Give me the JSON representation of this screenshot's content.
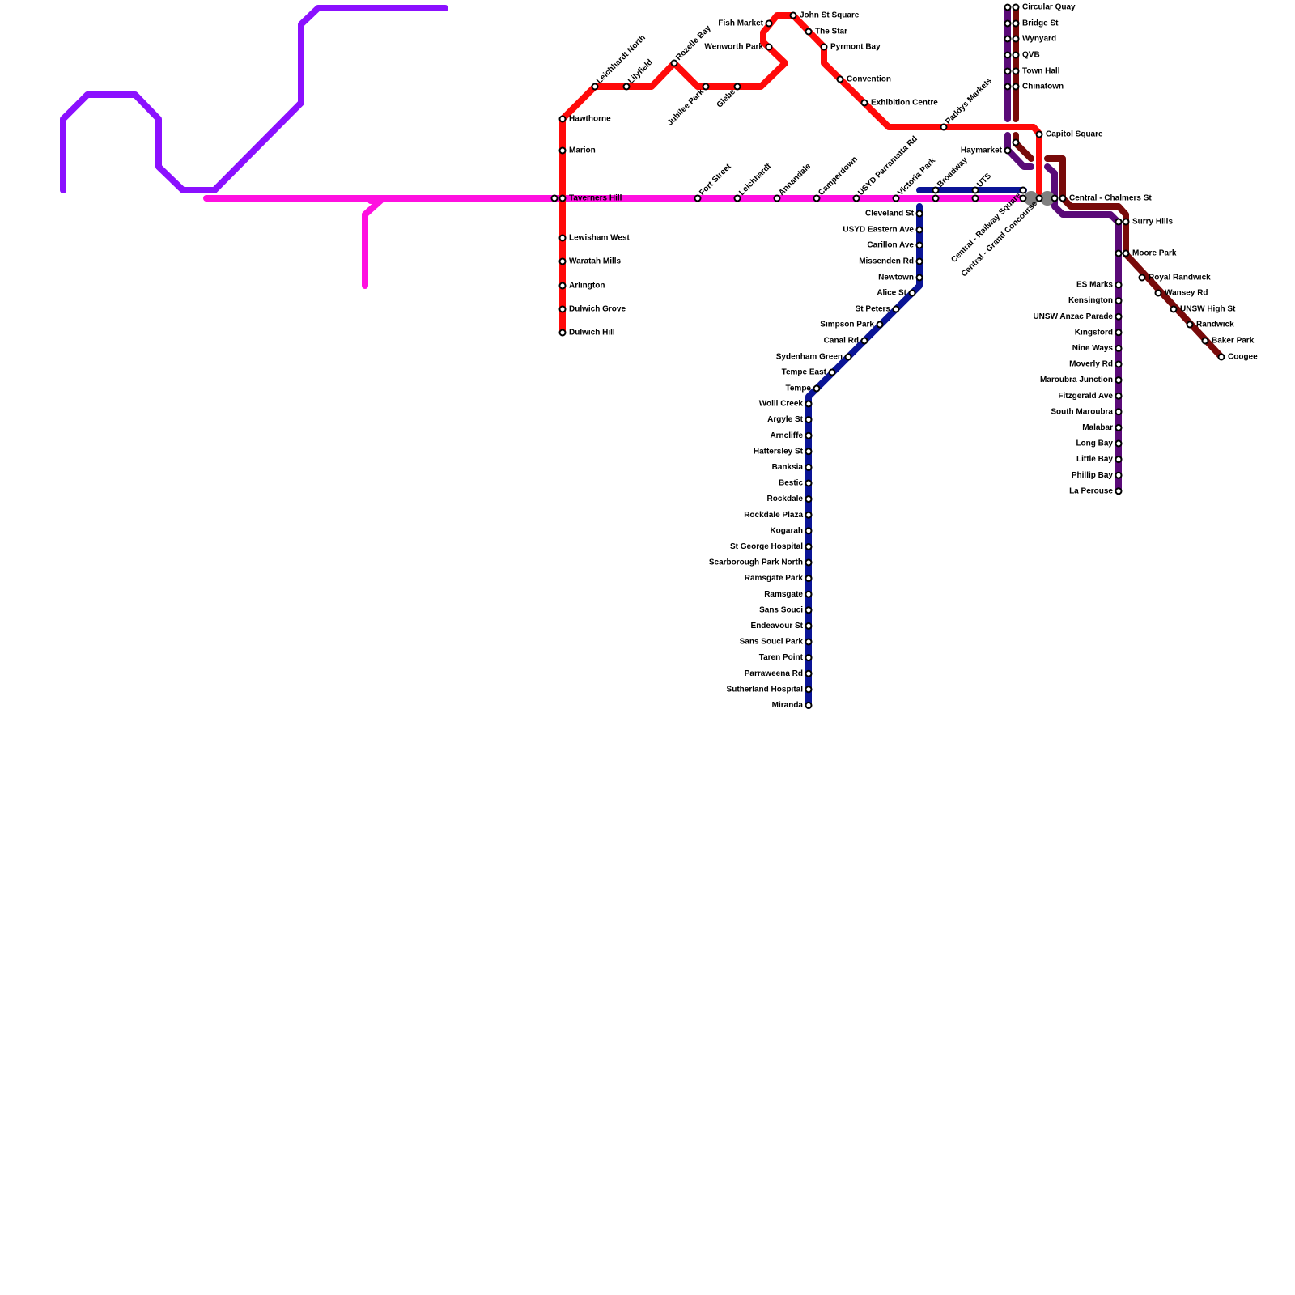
{
  "stations": [
    "Hawthorne",
    "Marion",
    "Taverners Hill",
    "Lewisham West",
    "Waratah Mills",
    "Arlington",
    "Dulwich Grove",
    "Dulwich Hill",
    "Leichhardt North",
    "Lilyfield",
    "Rozelle Bay",
    "Fort Street",
    "Leichhardt",
    "Annandale",
    "Camperdown",
    "USYD Parramatta Rd",
    "Victoria Park",
    "Broadway",
    "UTS",
    "Paddys Markets",
    "Jubilee Park",
    "Glebe",
    "Central - Railway Square",
    "Central - Grand Concourse",
    "Fish Market",
    "Wenworth Park",
    "Haymarket",
    "John St Square",
    "The Star",
    "Pyrmont Bay",
    "Convention",
    "Exhibition Centre",
    "Circular Quay",
    "Bridge St",
    "Wynyard",
    "QVB",
    "Town Hall",
    "Chinatown",
    "Capitol Square",
    "Central - Chalmers St",
    "Surry Hills",
    "Moore Park",
    "Royal Randwick",
    "Wansey Rd",
    "UNSW High St",
    "Randwick",
    "Baker Park",
    "Coogee",
    "Cleveland St",
    "USYD Eastern Ave",
    "Carillon Ave",
    "Missenden Rd",
    "Newtown",
    "Alice St",
    "St Peters",
    "Simpson Park",
    "Canal Rd",
    "Sydenham Green",
    "Tempe East",
    "Tempe",
    "Wolli Creek",
    "Argyle St",
    "Arncliffe",
    "Hattersley St",
    "Banksia",
    "Bestic",
    "Rockdale",
    "Rockdale Plaza",
    "Kogarah",
    "St George Hospital",
    "Scarborough Park North",
    "Ramsgate Park",
    "Ramsgate",
    "Sans Souci",
    "Endeavour St",
    "Sans Souci Park",
    "Taren Point",
    "Parraweena Rd",
    "Sutherland Hospital",
    "Miranda",
    "ES Marks",
    "Kensington",
    "UNSW Anzac Parade",
    "Kingsford",
    "Nine Ways",
    "Moverly Rd",
    "Maroubra Junction",
    "Fitzgerald Ave",
    "South Maroubra",
    "Malabar",
    "Long Bay",
    "Little Bay",
    "Phillip Bay",
    "La Perouse"
  ]
}
